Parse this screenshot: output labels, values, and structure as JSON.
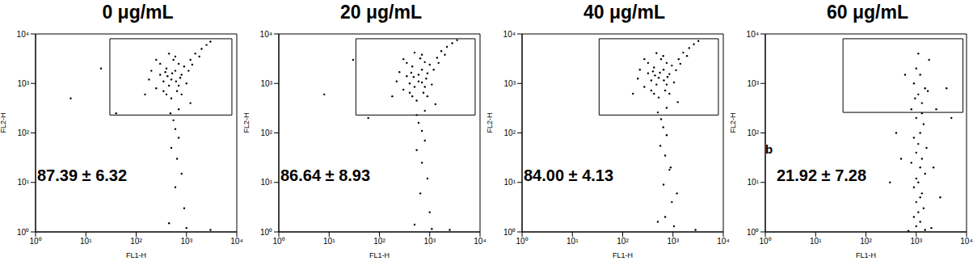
{
  "chart_data": [
    {
      "type": "scatter",
      "title": "0 μg/mL",
      "x_label": "FL1-H",
      "y_label": "FL2-H",
      "log": true,
      "grid": false,
      "color": "#000000",
      "marker": "circle",
      "xlim": [
        1,
        10000
      ],
      "ylim": [
        1,
        10000
      ],
      "xticks": [
        {
          "value": 1,
          "label": "10⁰"
        },
        {
          "value": 10,
          "label": "10¹"
        },
        {
          "value": 100,
          "label": "10²"
        },
        {
          "value": 1000,
          "label": "10³"
        },
        {
          "value": 10000,
          "label": "10⁴"
        }
      ],
      "yticks": [
        {
          "value": 1,
          "label": "10⁰"
        },
        {
          "value": 10,
          "label": "10¹"
        },
        {
          "value": 100,
          "label": "10²"
        },
        {
          "value": 1000,
          "label": "10³"
        },
        {
          "value": 10000,
          "label": "10⁴"
        }
      ],
      "gate": {
        "x": [
          30,
          8000
        ],
        "y": [
          230,
          8000
        ]
      },
      "annotation": "87.39 ± 6.32",
      "x": [
        300,
        400,
        500,
        600,
        450,
        350,
        700,
        800,
        550,
        250,
        650,
        900,
        1200,
        1500,
        2000,
        3000,
        400,
        500,
        300,
        200,
        180,
        1000,
        750,
        600,
        450,
        350,
        800,
        1100,
        1300,
        520,
        420,
        620,
        380,
        700,
        250,
        150,
        1800,
        2500,
        480,
        550,
        600,
        700,
        500,
        650,
        800,
        600,
        900,
        450,
        1000,
        3000,
        1200,
        700,
        5,
        20,
        40
      ],
      "values": [
        1500,
        2000,
        1200,
        1800,
        900,
        1100,
        2500,
        1500,
        3000,
        800,
        700,
        2200,
        3000,
        4000,
        5000,
        7000,
        600,
        500,
        2500,
        1800,
        1200,
        1000,
        1300,
        3500,
        4000,
        700,
        600,
        1800,
        2400,
        1600,
        1400,
        1100,
        1700,
        900,
        3000,
        600,
        3500,
        6000,
        250,
        180,
        120,
        80,
        50,
        30,
        15,
        8,
        3,
        1.5,
        1.2,
        1.1,
        400,
        300,
        500,
        2000,
        250
      ]
    },
    {
      "type": "scatter",
      "title": "20 μg/mL",
      "x_label": "FL1-H",
      "y_label": "FL2-H",
      "log": true,
      "grid": false,
      "color": "#000000",
      "marker": "circle",
      "xlim": [
        1,
        10000
      ],
      "ylim": [
        1,
        10000
      ],
      "xticks": [
        {
          "value": 1,
          "label": "10⁰"
        },
        {
          "value": 10,
          "label": "10¹"
        },
        {
          "value": 100,
          "label": "10²"
        },
        {
          "value": 1000,
          "label": "10³"
        },
        {
          "value": 10000,
          "label": "10⁴"
        }
      ],
      "yticks": [
        {
          "value": 1,
          "label": "10⁰"
        },
        {
          "value": 10,
          "label": "10¹"
        },
        {
          "value": 100,
          "label": "10²"
        },
        {
          "value": 1000,
          "label": "10³"
        },
        {
          "value": 10000,
          "label": "10⁴"
        }
      ],
      "gate": {
        "x": [
          34,
          8000
        ],
        "y": [
          230,
          8000
        ]
      },
      "annotation": "86.64 ± 8.93",
      "x": [
        350,
        450,
        600,
        700,
        500,
        400,
        800,
        900,
        650,
        300,
        750,
        1000,
        1400,
        1700,
        2200,
        3500,
        450,
        550,
        350,
        250,
        220,
        1100,
        850,
        700,
        500,
        400,
        900,
        1200,
        1500,
        600,
        480,
        700,
        430,
        800,
        300,
        180,
        2000,
        2800,
        550,
        600,
        700,
        800,
        550,
        700,
        900,
        650,
        1000,
        500,
        1100,
        2500,
        1300,
        800,
        8,
        30,
        60
      ],
      "values": [
        1400,
        2200,
        1100,
        1900,
        850,
        1000,
        2700,
        1600,
        3200,
        750,
        650,
        2400,
        3300,
        4500,
        5500,
        7500,
        550,
        450,
        2600,
        1700,
        1100,
        950,
        1250,
        3800,
        4200,
        650,
        550,
        1900,
        2600,
        1500,
        1350,
        1050,
        1650,
        850,
        3100,
        550,
        3800,
        6500,
        230,
        160,
        110,
        70,
        45,
        25,
        12,
        6,
        2.5,
        1.4,
        1.15,
        1.1,
        380,
        280,
        600,
        3000,
        200
      ]
    },
    {
      "type": "scatter",
      "title": "40 μg/mL",
      "x_label": "FL1-H",
      "y_label": "FL2-H",
      "log": true,
      "grid": false,
      "color": "#000000",
      "marker": "circle",
      "xlim": [
        1,
        10000
      ],
      "ylim": [
        1,
        10000
      ],
      "xticks": [
        {
          "value": 1,
          "label": "10⁰"
        },
        {
          "value": 10,
          "label": "10¹"
        },
        {
          "value": 100,
          "label": "10²"
        },
        {
          "value": 1000,
          "label": "10³"
        },
        {
          "value": 10000,
          "label": "10⁴"
        }
      ],
      "yticks": [
        {
          "value": 1,
          "label": "10⁰"
        },
        {
          "value": 10,
          "label": "10¹"
        },
        {
          "value": 100,
          "label": "10²"
        },
        {
          "value": 1000,
          "label": "10³"
        },
        {
          "value": 10000,
          "label": "10⁴"
        }
      ],
      "gate": {
        "x": [
          34,
          8000
        ],
        "y": [
          230,
          8000
        ]
      },
      "annotation": "84.00 ± 4.13",
      "x": [
        320,
        420,
        520,
        650,
        470,
        370,
        750,
        850,
        580,
        270,
        700,
        950,
        1300,
        1600,
        2100,
        3200,
        420,
        520,
        320,
        220,
        200,
        1050,
        780,
        640,
        470,
        370,
        850,
        1150,
        1400,
        550,
        440,
        660,
        400,
        750,
        270,
        160,
        1900,
        2600,
        500,
        580,
        640,
        750,
        560,
        700,
        850,
        650,
        950,
        500,
        1050,
        2800,
        1250,
        750,
        900,
        1200,
        700
      ],
      "values": [
        1600,
        2100,
        1300,
        1900,
        950,
        1150,
        2600,
        1550,
        3100,
        850,
        720,
        2300,
        3100,
        4200,
        5200,
        7200,
        620,
        520,
        2600,
        1900,
        1250,
        1050,
        1350,
        3600,
        4100,
        720,
        620,
        1850,
        2500,
        1650,
        1450,
        1150,
        1750,
        950,
        3100,
        620,
        3600,
        6200,
        260,
        190,
        130,
        90,
        55,
        35,
        18,
        9,
        4,
        1.6,
        1.3,
        1.1,
        420,
        320,
        20,
        6,
        2
      ]
    },
    {
      "type": "scatter",
      "title": "60 μg/mL",
      "x_label": "FL1-H",
      "y_label": "FL2-H",
      "log": true,
      "grid": false,
      "color": "#000000",
      "marker": "circle",
      "xlim": [
        1,
        10000
      ],
      "ylim": [
        1,
        10000
      ],
      "xticks": [
        {
          "value": 1,
          "label": "10⁰"
        },
        {
          "value": 10,
          "label": "10¹"
        },
        {
          "value": 100,
          "label": "10²"
        },
        {
          "value": 1000,
          "label": "10³"
        },
        {
          "value": 10000,
          "label": "10⁴"
        }
      ],
      "yticks": [
        {
          "value": 1,
          "label": "10⁰"
        },
        {
          "value": 10,
          "label": "10¹"
        },
        {
          "value": 100,
          "label": "10²"
        },
        {
          "value": 1000,
          "label": "10³"
        },
        {
          "value": 10000,
          "label": "10⁴"
        }
      ],
      "gate": {
        "x": [
          35,
          8500
        ],
        "y": [
          260,
          8000
        ]
      },
      "panel_label": "b",
      "annotation": "21.92 ± 7.28",
      "x": [
        1000,
        1200,
        900,
        1500,
        1100,
        1300,
        800,
        1000,
        1400,
        1200,
        900,
        1100,
        1600,
        1000,
        1300,
        800,
        1200,
        1500,
        1000,
        1100,
        900,
        1300,
        1200,
        1000,
        1400,
        1100,
        900,
        1200,
        1000,
        1500,
        700,
        2000,
        3000,
        500,
        400,
        2500,
        4000,
        600,
        1800,
        1100,
        300,
        2200,
        5000,
        1300,
        950,
        1700
      ],
      "values": [
        2000,
        1500,
        1000,
        800,
        600,
        400,
        300,
        200,
        150,
        100,
        80,
        60,
        50,
        40,
        30,
        25,
        20,
        15,
        12,
        10,
        8,
        6,
        5,
        4,
        3,
        2.5,
        2,
        1.6,
        1.3,
        1.1,
        1.05,
        1.2,
        5,
        30,
        100,
        300,
        800,
        1500,
        3000,
        4000,
        10,
        20,
        200,
        250,
        500,
        700
      ]
    }
  ]
}
